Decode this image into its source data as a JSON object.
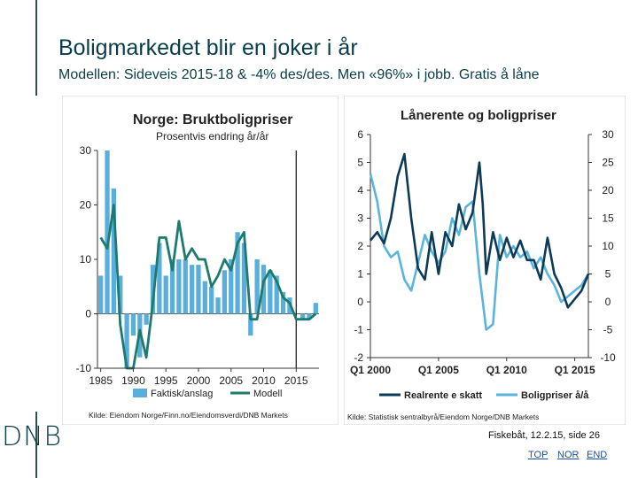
{
  "slide": {
    "title": "Boligmarkedet blir en joker i år",
    "subtitle": "Modellen: Sideveis 2015-18 & -4% des/des. Men «96%» i jobb. Gratis å låne",
    "logo": "DNB",
    "footer_info": "Fiskebåt, 12.2.15, side 26",
    "nav": [
      "TOP",
      "NOR",
      "END"
    ]
  },
  "chart_data": [
    {
      "type": "bar",
      "title": "Norge: Bruktboligpriser",
      "subtitle": "Prosentvis endring år/år",
      "source": "Kilde: Eiendom Norge/Finn.no/Eiendomsverdi/DNB Markets",
      "xlabel": "",
      "ylabel": "",
      "ylim": [
        -10,
        30
      ],
      "yticks": [
        30,
        20,
        10,
        0,
        -10
      ],
      "xticks": [
        "1985",
        "1990",
        "1995",
        "2000",
        "2005",
        "2010",
        "2015"
      ],
      "vline_at": 2015,
      "legend_placement": "bottom",
      "colors": {
        "bars": "#5aaedc",
        "line": "#1d7a6e"
      },
      "series": [
        {
          "name": "Faktisk/anslag",
          "type": "bar",
          "x": [
            1985,
            1986,
            1987,
            1988,
            1989,
            1990,
            1991,
            1992,
            1993,
            1994,
            1995,
            1996,
            1997,
            1998,
            1999,
            2000,
            2001,
            2002,
            2003,
            2004,
            2005,
            2006,
            2007,
            2008,
            2009,
            2010,
            2011,
            2012,
            2013,
            2014,
            2015,
            2016,
            2017,
            2018
          ],
          "values": [
            7,
            30,
            23,
            7,
            -10,
            -4,
            -8,
            -2,
            9,
            13,
            7,
            10,
            10,
            10,
            9,
            9,
            6,
            5,
            3,
            8,
            10,
            15,
            13,
            -4,
            10,
            9,
            8,
            7,
            4,
            3,
            0,
            -1,
            -1,
            2
          ]
        },
        {
          "name": "Modell",
          "type": "line",
          "x": [
            1985,
            1986,
            1987,
            1988,
            1989,
            1990,
            1991,
            1992,
            1993,
            1994,
            1995,
            1996,
            1997,
            1998,
            1999,
            2000,
            2001,
            2002,
            2003,
            2004,
            2005,
            2006,
            2007,
            2008,
            2009,
            2010,
            2011,
            2012,
            2013,
            2014,
            2015,
            2016,
            2017,
            2018
          ],
          "values": [
            14,
            12,
            20,
            -2,
            -10,
            -10,
            -3,
            -8,
            2,
            14,
            14,
            8,
            17,
            10,
            12,
            10,
            10,
            5,
            7,
            10,
            8,
            13,
            15,
            -1,
            -1,
            6,
            8,
            6,
            3,
            2,
            -1,
            -1,
            -1,
            0
          ]
        }
      ]
    },
    {
      "type": "line",
      "title": "Lånerente og boligpriser",
      "source": "Kilde: Statistisk sentralbyrå/Eiendom Norge/DNB Markets",
      "xlabel": "",
      "ylabel": "",
      "xticks": [
        "Q1 2000",
        "Q1 2005",
        "Q1 2010",
        "Q1 2015"
      ],
      "xlim": [
        2000,
        2016
      ],
      "ylim_left": [
        -2,
        6
      ],
      "yticks_left": [
        6,
        5,
        4,
        3,
        2,
        1,
        0,
        -1,
        -2
      ],
      "ylim_right": [
        -10,
        30
      ],
      "yticks_right": [
        30,
        25,
        20,
        15,
        10,
        5,
        0,
        -5,
        -10
      ],
      "legend_placement": "bottom",
      "colors": {
        "realrente": "#0d3a56",
        "boligpriser": "#5ab4dc"
      },
      "series": [
        {
          "name": "Realrente e skatt",
          "axis": "left",
          "x": [
            2000,
            2000.5,
            2001,
            2001.5,
            2002,
            2002.5,
            2003,
            2003.5,
            2004,
            2004.5,
            2005,
            2005.5,
            2006,
            2006.5,
            2007,
            2007.5,
            2008,
            2008.25,
            2008.5,
            2009,
            2009.5,
            2010,
            2010.5,
            2011,
            2011.5,
            2012,
            2012.5,
            2013,
            2013.5,
            2014,
            2014.5,
            2015,
            2015.5,
            2016
          ],
          "values": [
            2.2,
            2.5,
            2.1,
            3.0,
            4.5,
            5.3,
            3.0,
            1.2,
            0.8,
            2.5,
            1.0,
            2.5,
            2.0,
            3.5,
            2.6,
            3.2,
            5.0,
            3.5,
            1.0,
            2.5,
            1.5,
            2.3,
            1.6,
            2.2,
            1.5,
            1.5,
            0.8,
            2.3,
            1.0,
            0.5,
            -0.2,
            0.1,
            0.4,
            1.0
          ]
        },
        {
          "name": "Boligpriser å/å",
          "axis": "right",
          "x": [
            2000,
            2000.5,
            2001,
            2001.5,
            2002,
            2002.5,
            2003,
            2003.5,
            2004,
            2004.5,
            2005,
            2005.5,
            2006,
            2006.5,
            2007,
            2007.5,
            2008,
            2008.5,
            2009,
            2009.5,
            2010,
            2010.5,
            2011,
            2011.5,
            2012,
            2012.5,
            2013,
            2013.5,
            2014,
            2014.5,
            2015,
            2015.5,
            2016
          ],
          "values": [
            23,
            18,
            10,
            8,
            9,
            4,
            2,
            7,
            12,
            9,
            7,
            9,
            15,
            12,
            17,
            18,
            5,
            -5,
            -4,
            12,
            8,
            10,
            8,
            9,
            6,
            8,
            5,
            3,
            0,
            1,
            2,
            3,
            5
          ]
        }
      ]
    }
  ]
}
